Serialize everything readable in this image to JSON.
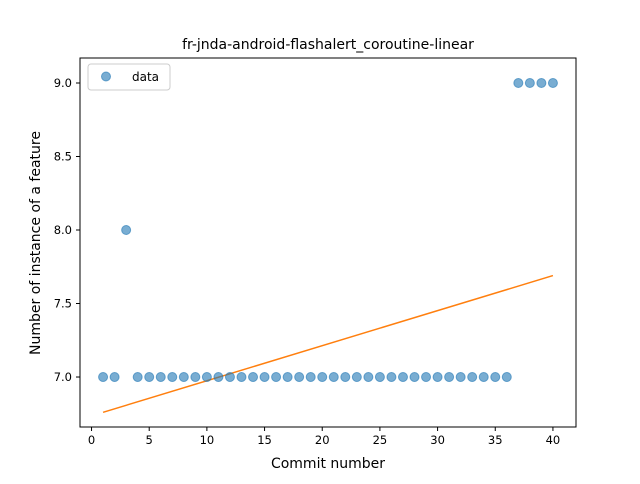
{
  "chart_data": {
    "type": "scatter",
    "title": "fr-jnda-android-flashalert_coroutine-linear",
    "xlabel": "Commit number",
    "ylabel": "Number of instance of a feature",
    "xlim": [
      -1,
      42
    ],
    "ylim": [
      6.66,
      9.17
    ],
    "xticks": [
      0,
      5,
      10,
      15,
      20,
      25,
      30,
      35,
      40
    ],
    "yticks": [
      7.0,
      7.5,
      8.0,
      8.5,
      9.0
    ],
    "xtick_labels": [
      "0",
      "5",
      "10",
      "15",
      "20",
      "25",
      "30",
      "35",
      "40"
    ],
    "ytick_labels": [
      "7.0",
      "7.5",
      "8.0",
      "8.5",
      "9.0"
    ],
    "grid": false,
    "legend": {
      "position": "top-left",
      "entries": [
        "data"
      ]
    },
    "colors": {
      "points": "#1f77b4",
      "fit": "#ff7f0e"
    },
    "series": [
      {
        "name": "data",
        "type": "scatter",
        "x": [
          1,
          2,
          3,
          4,
          5,
          6,
          7,
          8,
          9,
          10,
          11,
          12,
          13,
          14,
          15,
          16,
          17,
          18,
          19,
          20,
          21,
          22,
          23,
          24,
          25,
          26,
          27,
          28,
          29,
          30,
          31,
          32,
          33,
          34,
          35,
          36,
          37,
          38,
          39,
          40
        ],
        "y": [
          7,
          7,
          8,
          7,
          7,
          7,
          7,
          7,
          7,
          7,
          7,
          7,
          7,
          7,
          7,
          7,
          7,
          7,
          7,
          7,
          7,
          7,
          7,
          7,
          7,
          7,
          7,
          7,
          7,
          7,
          7,
          7,
          7,
          7,
          7,
          7,
          9,
          9,
          9,
          9
        ]
      },
      {
        "type": "line",
        "x": [
          1,
          40
        ],
        "y": [
          6.76,
          7.69
        ]
      }
    ]
  }
}
